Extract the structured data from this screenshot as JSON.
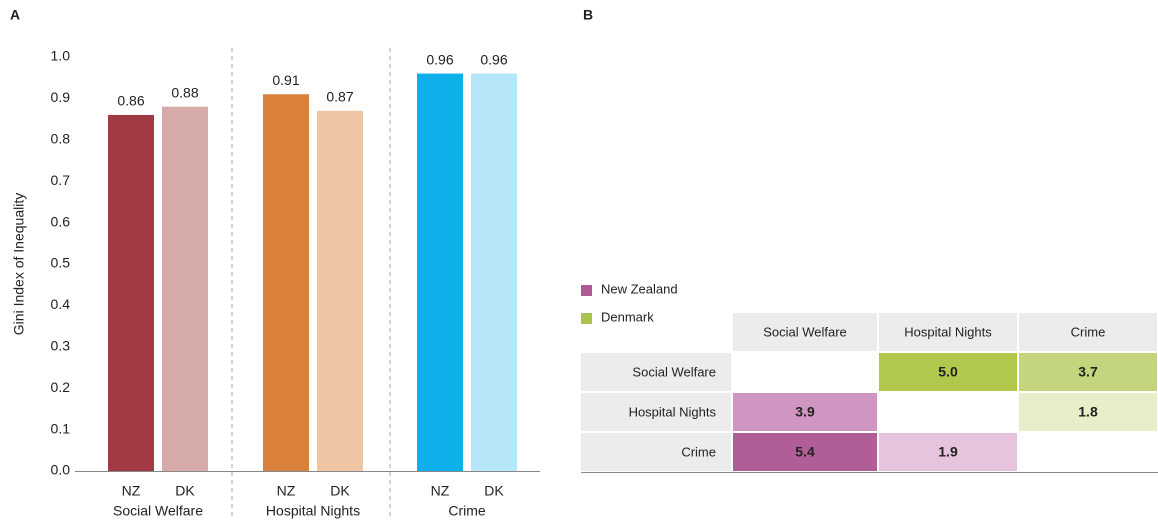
{
  "chart_data": {
    "type": "bar",
    "panel_label": "A",
    "y_label": "Gini Index of Inequality",
    "categories": [
      "NZ",
      "DK",
      "NZ",
      "DK",
      "NZ",
      "DK"
    ],
    "groups": [
      "Social Welfare",
      "Hospital Nights",
      "Crime"
    ],
    "values": [
      0.86,
      0.88,
      0.91,
      0.87,
      0.96,
      0.96
    ],
    "colors": [
      "#a13a45",
      "#d6aaa9",
      "#d9803b",
      "#efc6a4",
      "#0eb0ec",
      "#b5e6f9"
    ],
    "ylim": [
      0,
      1
    ],
    "yticks": [
      {
        "value": 0,
        "label": "0.0"
      },
      0.1,
      0.2,
      0.3,
      0.4,
      0.5,
      0.6,
      0.7,
      0.8,
      0.9,
      {
        "value": 1,
        "label": "1.0"
      }
    ],
    "grid": false
  },
  "table": {
    "panel_label": "B",
    "legend": [
      {
        "name": "New Zealand",
        "color": "#b05a96"
      },
      {
        "name": "Denmark",
        "color": "#a8c44a"
      }
    ],
    "columns": [
      "Social Welfare",
      "Hospital Nights",
      "Crime"
    ],
    "rows": [
      {
        "label": "Social Welfare",
        "cells": [
          null,
          "5.0",
          "3.7"
        ],
        "colors": [
          null,
          "#b0c84c",
          "#c3d67e"
        ]
      },
      {
        "label": "Hospital Nights",
        "cells": [
          "3.9",
          null,
          "1.8"
        ],
        "colors": [
          "#cf96c2",
          null,
          "#e6efc9"
        ]
      },
      {
        "label": "Crime",
        "cells": [
          "5.4",
          "1.9",
          null
        ],
        "colors": [
          "#b05d98",
          "#e7c4dd",
          null
        ]
      }
    ]
  }
}
